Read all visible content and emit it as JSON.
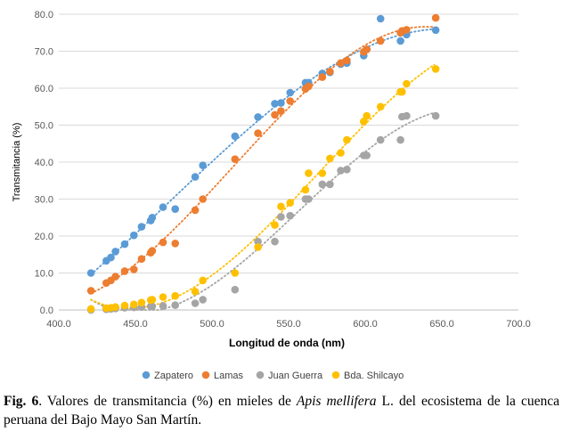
{
  "chart_data": {
    "type": "scatter",
    "title": "",
    "xlabel": "Longitud de onda (nm)",
    "ylabel": "Transmitancia (%)",
    "xlim": [
      400,
      700
    ],
    "ylim": [
      0,
      80
    ],
    "x_ticks": [
      "400.0",
      "450.0",
      "500.0",
      "550.0",
      "600.0",
      "650.0",
      "700.0"
    ],
    "y_ticks": [
      "0.0",
      "10.0",
      "20.0",
      "30.0",
      "40.0",
      "50.0",
      "60.0",
      "70.0",
      "80.0"
    ],
    "grid": "horizontal",
    "trendline": "dotted polynomial per series",
    "legend_position": "bottom",
    "series": [
      {
        "name": "Zapatero",
        "color": "#5B9BD5",
        "points": [
          [
            421,
            10.0
          ],
          [
            431,
            13.3
          ],
          [
            434,
            14.2
          ],
          [
            437,
            15.8
          ],
          [
            443,
            17.8
          ],
          [
            449,
            20.2
          ],
          [
            454,
            22.5
          ],
          [
            460,
            24.2
          ],
          [
            461,
            25.0
          ],
          [
            468,
            27.8
          ],
          [
            476,
            27.3
          ],
          [
            489,
            36.0
          ],
          [
            494,
            39.1
          ],
          [
            515,
            47.0
          ],
          [
            530,
            52.2
          ],
          [
            541,
            55.8
          ],
          [
            545,
            56.0
          ],
          [
            551,
            58.8
          ],
          [
            561,
            61.5
          ],
          [
            563,
            61.5
          ],
          [
            572,
            64.0
          ],
          [
            577,
            64.3
          ],
          [
            584,
            66.5
          ],
          [
            588,
            66.8
          ],
          [
            599,
            68.8
          ],
          [
            601,
            70.5
          ],
          [
            610,
            78.8
          ],
          [
            623,
            72.8
          ],
          [
            624,
            75.2
          ],
          [
            627,
            74.5
          ],
          [
            646,
            75.7
          ]
        ]
      },
      {
        "name": "Lamas",
        "color": "#ED7D31",
        "points": [
          [
            421,
            5.2
          ],
          [
            431,
            7.3
          ],
          [
            434,
            8.0
          ],
          [
            437,
            9.0
          ],
          [
            443,
            10.5
          ],
          [
            449,
            11.0
          ],
          [
            454,
            13.8
          ],
          [
            460,
            15.5
          ],
          [
            461,
            16.0
          ],
          [
            468,
            18.3
          ],
          [
            476,
            18.0
          ],
          [
            489,
            27.0
          ],
          [
            494,
            30.0
          ],
          [
            515,
            40.8
          ],
          [
            530,
            47.8
          ],
          [
            541,
            52.8
          ],
          [
            545,
            53.8
          ],
          [
            551,
            56.5
          ],
          [
            561,
            59.8
          ],
          [
            563,
            60.5
          ],
          [
            572,
            63.0
          ],
          [
            577,
            64.5
          ],
          [
            584,
            66.8
          ],
          [
            588,
            67.5
          ],
          [
            599,
            69.8
          ],
          [
            601,
            70.5
          ],
          [
            610,
            72.8
          ],
          [
            623,
            75.0
          ],
          [
            624,
            75.5
          ],
          [
            627,
            75.8
          ],
          [
            646,
            79.0
          ]
        ]
      },
      {
        "name": "Juan Guerra",
        "color": "#A5A5A5",
        "points": [
          [
            421,
            0.0
          ],
          [
            431,
            0.2
          ],
          [
            434,
            0.3
          ],
          [
            437,
            0.4
          ],
          [
            443,
            0.6
          ],
          [
            449,
            0.7
          ],
          [
            454,
            0.8
          ],
          [
            460,
            1.0
          ],
          [
            461,
            1.0
          ],
          [
            468,
            1.1
          ],
          [
            476,
            1.3
          ],
          [
            489,
            1.8
          ],
          [
            494,
            2.8
          ],
          [
            515,
            5.5
          ],
          [
            530,
            18.5
          ],
          [
            541,
            18.5
          ],
          [
            545,
            25.2
          ],
          [
            551,
            25.5
          ],
          [
            561,
            30.0
          ],
          [
            563,
            30.0
          ],
          [
            572,
            34.0
          ],
          [
            577,
            34.0
          ],
          [
            584,
            37.7
          ],
          [
            588,
            38.0
          ],
          [
            599,
            41.8
          ],
          [
            601,
            41.8
          ],
          [
            610,
            46.0
          ],
          [
            623,
            46.0
          ],
          [
            624,
            52.3
          ],
          [
            627,
            52.5
          ],
          [
            646,
            52.5
          ]
        ]
      },
      {
        "name": "Bda. Shilcayo",
        "color": "#FFC000",
        "points": [
          [
            421,
            0.3
          ],
          [
            431,
            0.5
          ],
          [
            434,
            0.6
          ],
          [
            437,
            0.8
          ],
          [
            443,
            1.2
          ],
          [
            449,
            1.5
          ],
          [
            454,
            2.0
          ],
          [
            460,
            2.7
          ],
          [
            461,
            2.8
          ],
          [
            468,
            3.5
          ],
          [
            476,
            3.8
          ],
          [
            489,
            5.0
          ],
          [
            494,
            8.0
          ],
          [
            515,
            10.0
          ],
          [
            530,
            17.0
          ],
          [
            541,
            23.0
          ],
          [
            545,
            28.0
          ],
          [
            551,
            29.0
          ],
          [
            561,
            32.5
          ],
          [
            563,
            37.0
          ],
          [
            572,
            37.0
          ],
          [
            577,
            41.0
          ],
          [
            584,
            42.5
          ],
          [
            588,
            46.0
          ],
          [
            599,
            51.0
          ],
          [
            601,
            52.5
          ],
          [
            610,
            55.0
          ],
          [
            623,
            59.0
          ],
          [
            624,
            59.0
          ],
          [
            627,
            61.2
          ],
          [
            646,
            65.2
          ]
        ]
      }
    ]
  },
  "caption": {
    "fig_label": "Fig. 6",
    "text_before": ". Valores de transmitancia (%) en mieles de ",
    "species": "Apis mellifera",
    "text_after": " L. del ecosistema de la cuenca peruana del Bajo Mayo San Martín."
  }
}
